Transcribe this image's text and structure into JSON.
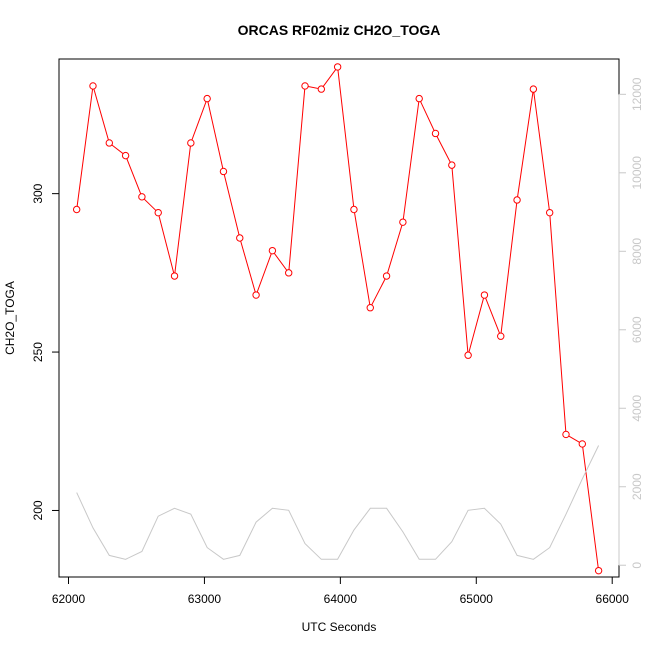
{
  "chart_data": {
    "type": "line",
    "title": "ORCAS RF02miz CH2O_TOGA",
    "xlabel": "UTC Seconds",
    "ylabel": "CH2O_TOGA",
    "xlim": [
      61930,
      66050
    ],
    "ylim": [
      179,
      342.5
    ],
    "y2lim": [
      -300,
      12900
    ],
    "x_ticks": [
      62000,
      63000,
      64000,
      65000,
      66000
    ],
    "y_ticks": [
      200,
      250,
      300
    ],
    "y2_ticks": [
      0,
      2000,
      4000,
      6000,
      8000,
      10000,
      12000
    ],
    "colors": {
      "primary": "#ff0000",
      "secondary": "#c8c8c8"
    },
    "series": [
      {
        "axis": "left",
        "style": "line+circles",
        "x": [
          62060,
          62180,
          62300,
          62420,
          62540,
          62660,
          62780,
          62900,
          63020,
          63140,
          63260,
          63380,
          63500,
          63620,
          63740,
          63860,
          63980,
          64100,
          64220,
          64340,
          64460,
          64580,
          64700,
          64820,
          64940,
          65060,
          65180,
          65300,
          65420,
          65540,
          65660,
          65780,
          65900
        ],
        "values": [
          295,
          334,
          316,
          312,
          299,
          294,
          274,
          316,
          330,
          307,
          286,
          268,
          282,
          275,
          334,
          333,
          340,
          295,
          264,
          274,
          291,
          330,
          319,
          309,
          249,
          268,
          255,
          298,
          333,
          294,
          224,
          221,
          181
        ]
      },
      {
        "axis": "right",
        "style": "line",
        "x": [
          62060,
          62180,
          62300,
          62420,
          62540,
          62660,
          62780,
          62900,
          63020,
          63140,
          63260,
          63380,
          63500,
          63620,
          63740,
          63860,
          63980,
          64100,
          64220,
          64340,
          64460,
          64580,
          64700,
          64820,
          64940,
          65060,
          65180,
          65300,
          65420,
          65540,
          65660,
          65780,
          65900
        ],
        "values": [
          1850,
          950,
          250,
          150,
          350,
          1250,
          1450,
          1300,
          450,
          150,
          250,
          1100,
          1450,
          1400,
          550,
          150,
          150,
          900,
          1450,
          1450,
          850,
          150,
          150,
          600,
          1400,
          1450,
          1050,
          250,
          150,
          450,
          1300,
          2200,
          3050
        ]
      }
    ]
  }
}
